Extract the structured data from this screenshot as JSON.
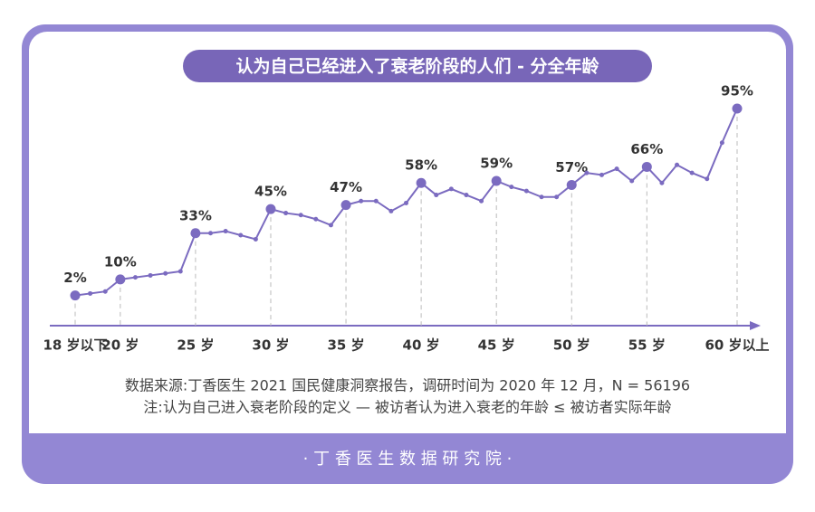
{
  "chart_data": {
    "type": "line",
    "title": "认为自己已经进入了衰老阶段的人们 - 分全年龄",
    "categories": [
      "18 岁以下",
      null,
      null,
      "20 岁",
      null,
      null,
      null,
      null,
      "25 岁",
      null,
      null,
      null,
      null,
      "30 岁",
      null,
      null,
      null,
      null,
      "35 岁",
      null,
      null,
      null,
      null,
      "40 岁",
      null,
      null,
      null,
      null,
      "45 岁",
      null,
      null,
      null,
      null,
      "50 岁",
      null,
      null,
      null,
      null,
      "55 岁",
      null,
      null,
      null,
      null,
      null,
      "60 岁以上"
    ],
    "values": [
      2,
      3,
      4,
      10,
      11,
      12,
      13,
      14,
      33,
      33,
      34,
      32,
      30,
      45,
      43,
      42,
      40,
      37,
      47,
      49,
      49,
      44,
      48,
      58,
      52,
      55,
      52,
      49,
      59,
      56,
      54,
      51,
      51,
      57,
      63,
      62,
      65,
      59,
      66,
      58,
      67,
      63,
      60,
      78,
      95
    ],
    "value_labels": [
      "2%",
      null,
      null,
      "10%",
      null,
      null,
      null,
      null,
      "33%",
      null,
      null,
      null,
      null,
      "45%",
      null,
      null,
      null,
      null,
      "47%",
      null,
      null,
      null,
      null,
      "58%",
      null,
      null,
      null,
      null,
      "59%",
      null,
      null,
      null,
      null,
      "57%",
      null,
      null,
      null,
      null,
      "66%",
      null,
      null,
      null,
      null,
      null,
      "95%"
    ],
    "color": "#7b6bc0",
    "ylim": [
      -13,
      104
    ],
    "notes": [
      "数据来源:丁香医生 2021 国民健康洞察报告，调研时间为 2020 年 12 月，N = 56196",
      "注:认为自己进入衰老阶段的定义 — 被访者认为进入衰老的年龄 ≤ 被访者实际年龄"
    ],
    "footer": "· 丁 香 医 生 数 据 研 究 院 ·"
  }
}
